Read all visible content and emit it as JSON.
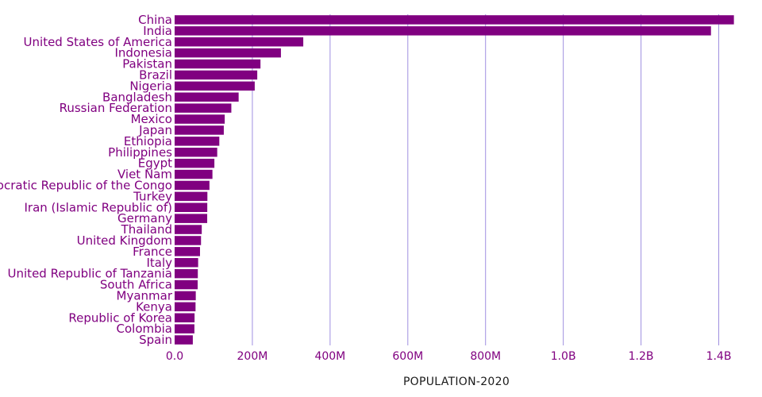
{
  "chart_data": {
    "type": "bar",
    "orientation": "horizontal",
    "xlabel": "POPULATION-2020",
    "ylabel": "",
    "xlim": [
      0,
      1450000000
    ],
    "xticks": [
      0,
      200000000,
      400000000,
      600000000,
      800000000,
      1000000000,
      1200000000,
      1400000000
    ],
    "xtick_labels": [
      "0.0",
      "200M",
      "400M",
      "600M",
      "800M",
      "1.0B",
      "1.2B",
      "1.4B"
    ],
    "grid": "vertical",
    "colors": {
      "bar": "#800080",
      "grid": "#9f8fe0",
      "label": "#800080"
    },
    "categories": [
      "China",
      "India",
      "United States of America",
      "Indonesia",
      "Pakistan",
      "Brazil",
      "Nigeria",
      "Bangladesh",
      "Russian Federation",
      "Mexico",
      "Japan",
      "Ethiopia",
      "Philippines",
      "Egypt",
      "Viet Nam",
      "Democratic Republic of the Congo",
      "Turkey",
      "Iran (Islamic Republic of)",
      "Germany",
      "Thailand",
      "United Kingdom",
      "France",
      "Italy",
      "United Republic of Tanzania",
      "South Africa",
      "Myanmar",
      "Kenya",
      "Republic of Korea",
      "Colombia",
      "Spain"
    ],
    "values": [
      1439000000,
      1380000000,
      331000000,
      273500000,
      220900000,
      212600000,
      206100000,
      164700000,
      145900000,
      128900000,
      126500000,
      115000000,
      109600000,
      102300000,
      97300000,
      89600000,
      84300000,
      84000000,
      83800000,
      69800000,
      67900000,
      65300000,
      60500000,
      59700000,
      59300000,
      54400000,
      53800000,
      51300000,
      50900000,
      46800000
    ]
  }
}
